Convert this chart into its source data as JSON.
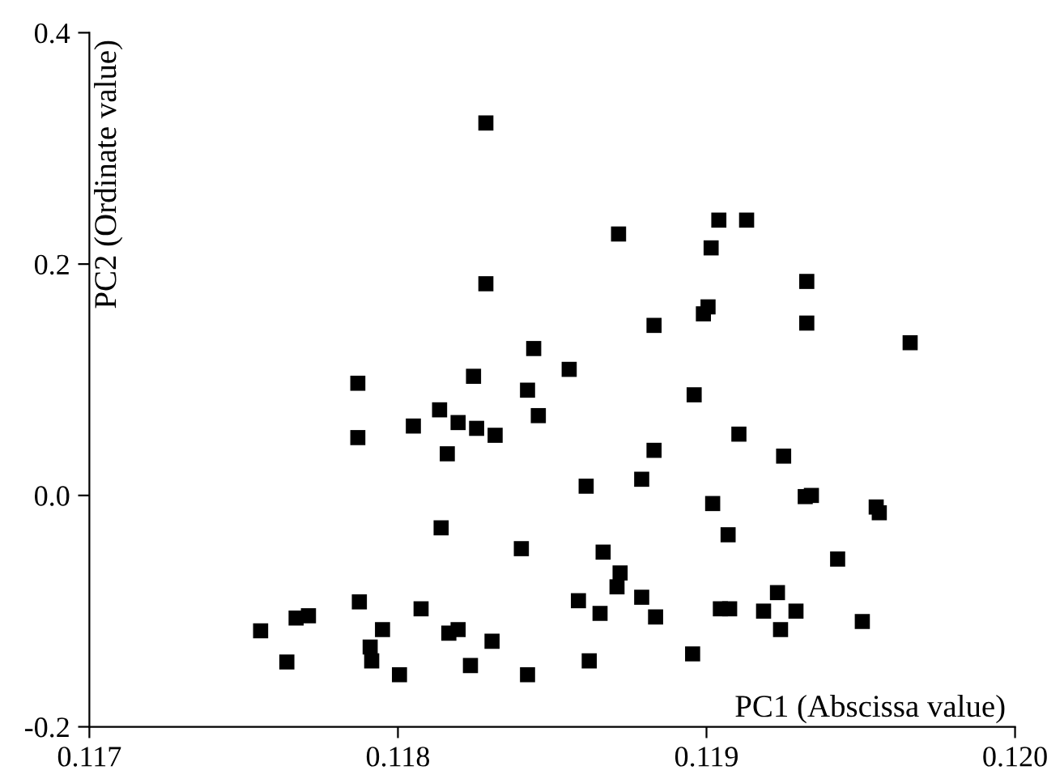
{
  "chart_data": {
    "type": "scatter",
    "xlabel": "PC1 (Abscissa value)",
    "ylabel": "PC2 (Ordinate value)",
    "xlim": [
      0.117,
      0.12
    ],
    "xticks": [
      0.117,
      0.118,
      0.119,
      {
        "value": 0.12,
        "label": "0.120"
      }
    ],
    "ylim": [
      -0.2,
      0.4
    ],
    "yticks": [
      -0.2,
      {
        "value": 0,
        "label": "0.0"
      },
      0.2,
      0.4
    ],
    "marker": "square",
    "grid": false,
    "legend": false,
    "series": [
      {
        "color": "#000000",
        "x": [
          0.117555,
          0.11764,
          0.11767,
          0.11771,
          0.11787,
          0.11787,
          0.117875,
          0.11791,
          0.117915,
          0.11795,
          0.118005,
          0.11805,
          0.118075,
          0.118135,
          0.11814,
          0.11816,
          0.118165,
          0.118195,
          0.118195,
          0.118235,
          0.118245,
          0.118255,
          0.118285,
          0.118285,
          0.118305,
          0.118315,
          0.1184,
          0.11842,
          0.11842,
          0.11844,
          0.118455,
          0.118555,
          0.118585,
          0.11861,
          0.11862,
          0.118655,
          0.118665,
          0.11871,
          0.11872,
          0.118715,
          0.11879,
          0.11879,
          0.11883,
          0.11883,
          0.118835,
          0.118955,
          0.11896,
          0.11899,
          0.119005,
          0.119015,
          0.11902,
          0.11904,
          0.119045,
          0.11907,
          0.119075,
          0.119105,
          0.11913,
          0.119185,
          0.11923,
          0.11924,
          0.11925,
          0.11929,
          0.11932,
          0.119325,
          0.119325,
          0.11934,
          0.119425,
          0.119505,
          0.11955,
          0.11956,
          0.11966
        ],
        "values": [
          -0.117,
          -0.144,
          -0.106,
          -0.104,
          0.097,
          0.05,
          -0.092,
          -0.131,
          -0.143,
          -0.116,
          -0.155,
          0.06,
          -0.098,
          0.074,
          -0.028,
          0.036,
          -0.119,
          0.063,
          -0.116,
          -0.147,
          0.103,
          0.058,
          0.322,
          0.183,
          -0.126,
          0.052,
          -0.046,
          0.091,
          -0.155,
          0.127,
          0.069,
          0.109,
          -0.091,
          0.008,
          -0.143,
          -0.102,
          -0.049,
          -0.079,
          -0.067,
          0.226,
          0.014,
          -0.088,
          0.039,
          0.147,
          -0.105,
          -0.137,
          0.087,
          0.157,
          0.163,
          0.214,
          -0.007,
          0.238,
          -0.098,
          -0.034,
          -0.098,
          0.053,
          0.238,
          -0.1,
          -0.084,
          -0.116,
          0.034,
          -0.1,
          -0.001,
          0.185,
          0.149,
          0.0,
          -0.055,
          -0.109,
          -0.01,
          -0.015,
          0.132
        ]
      }
    ]
  }
}
